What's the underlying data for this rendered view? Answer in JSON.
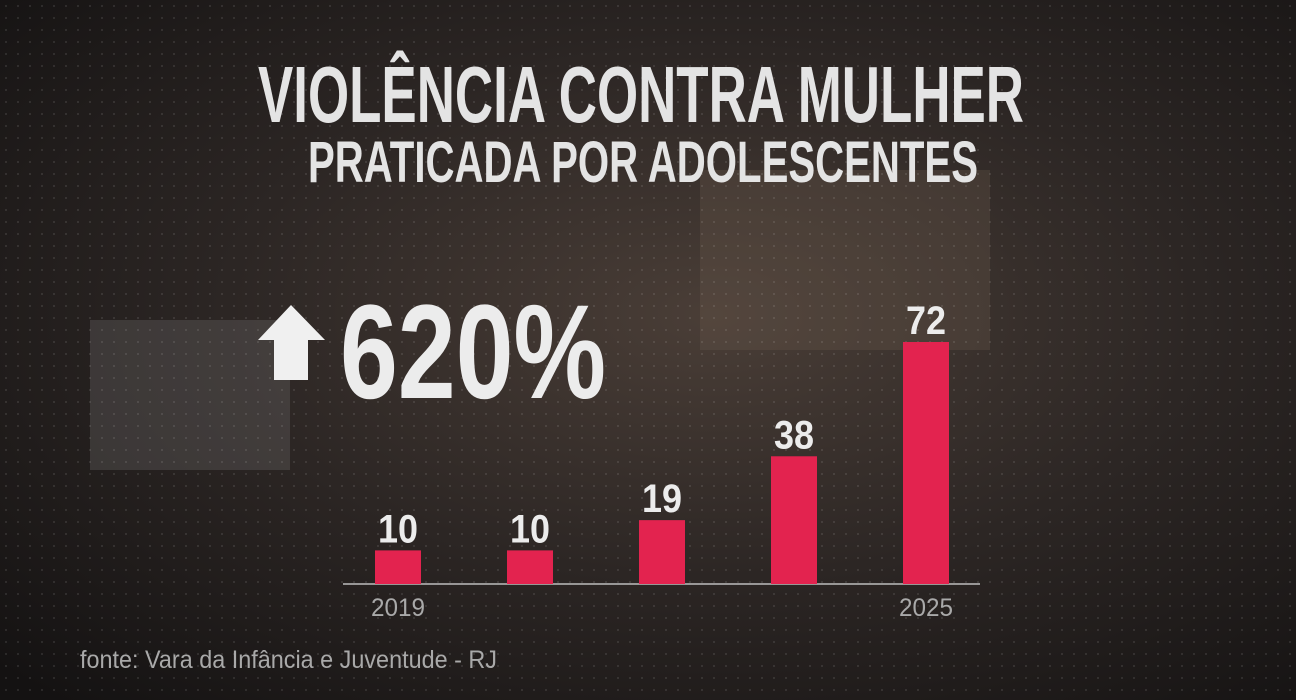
{
  "chart_data": {
    "type": "bar",
    "title": "VIOLÊNCIA CONTRA MULHER",
    "subtitle": "PRATICADA POR ADOLESCENTES",
    "annotation": "620%",
    "categories": [
      "2019",
      null,
      null,
      null,
      "2025"
    ],
    "values": [
      10,
      10,
      19,
      38,
      72
    ],
    "color": "#e3234f",
    "source": "fonte: Vara da Infância e Juventude - RJ"
  }
}
